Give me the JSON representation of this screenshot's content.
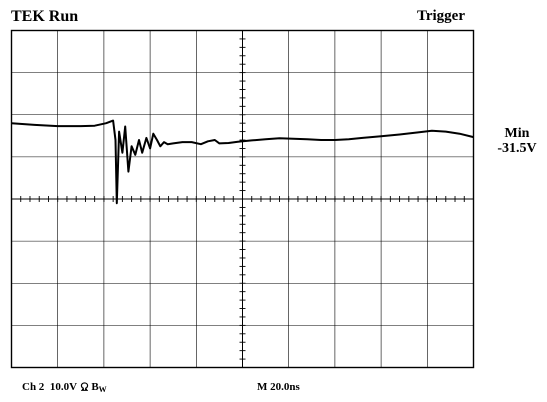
{
  "header": {
    "status": "TEK Run",
    "mode": "Trigger"
  },
  "measurement": {
    "label": "Min",
    "value": "-31.5V"
  },
  "footer": {
    "channel": "Ch 2",
    "volts_per_div": "10.0V",
    "coupling_icon": "ohm-icon",
    "bandwidth": "B",
    "bandwidth_sub": "W",
    "timebase": "M  20.0ns"
  },
  "graticule": {
    "x_divisions": 10,
    "y_divisions": 8,
    "minor_ticks_per_division": 5
  },
  "waveform": {
    "color": "#000000",
    "trace": [
      [
        0.0,
        1.8
      ],
      [
        0.5,
        1.76
      ],
      [
        1.0,
        1.73
      ],
      [
        1.5,
        1.73
      ],
      [
        1.8,
        1.74
      ],
      [
        2.05,
        1.8
      ],
      [
        2.2,
        1.86
      ],
      [
        2.25,
        1.4
      ],
      [
        2.28,
        -0.1
      ],
      [
        2.33,
        1.6
      ],
      [
        2.4,
        1.1
      ],
      [
        2.46,
        1.72
      ],
      [
        2.53,
        0.65
      ],
      [
        2.6,
        1.25
      ],
      [
        2.68,
        1.05
      ],
      [
        2.76,
        1.4
      ],
      [
        2.83,
        1.1
      ],
      [
        2.92,
        1.45
      ],
      [
        3.0,
        1.2
      ],
      [
        3.07,
        1.55
      ],
      [
        3.15,
        1.4
      ],
      [
        3.22,
        1.25
      ],
      [
        3.3,
        1.35
      ],
      [
        3.38,
        1.3
      ],
      [
        3.5,
        1.32
      ],
      [
        3.7,
        1.35
      ],
      [
        3.9,
        1.35
      ],
      [
        4.1,
        1.3
      ],
      [
        4.25,
        1.37
      ],
      [
        4.4,
        1.4
      ],
      [
        4.5,
        1.32
      ],
      [
        4.7,
        1.33
      ],
      [
        4.9,
        1.36
      ],
      [
        5.2,
        1.39
      ],
      [
        5.5,
        1.42
      ],
      [
        5.8,
        1.44
      ],
      [
        6.1,
        1.43
      ],
      [
        6.4,
        1.42
      ],
      [
        6.7,
        1.4
      ],
      [
        7.0,
        1.4
      ],
      [
        7.3,
        1.42
      ],
      [
        7.6,
        1.45
      ],
      [
        8.0,
        1.49
      ],
      [
        8.4,
        1.53
      ],
      [
        8.8,
        1.58
      ],
      [
        9.1,
        1.62
      ],
      [
        9.4,
        1.6
      ],
      [
        9.7,
        1.55
      ],
      [
        10.0,
        1.47
      ]
    ]
  }
}
